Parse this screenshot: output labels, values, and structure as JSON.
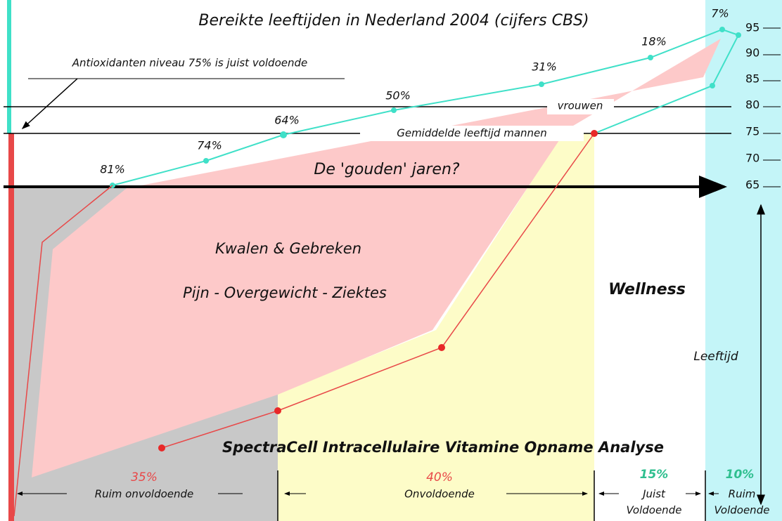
{
  "title": "Bereikte leeftijden in Nederland 2004 (cijfers CBS)",
  "annotation": "Antioxidanten niveau 75% is juist voldoende",
  "lines": {
    "women": "vrouwen",
    "men": "Gemiddelde leeftijd mannen"
  },
  "golden_years": "De 'gouden' jaren?",
  "area_labels": {
    "ailments": "Kwalen & Gebreken",
    "conditions": "Pijn - Overgewicht - Ziektes",
    "wellness": "Wellness",
    "age": "Leeftijd",
    "analysis": "SpectraCell Intracellulaire Vitamine Opname Analyse"
  },
  "age_axis": [
    95,
    90,
    85,
    80,
    75,
    70,
    65
  ],
  "survival_labels": [
    "81%",
    "74%",
    "64%",
    "50%",
    "31%",
    "18%",
    "7%"
  ],
  "levels": [
    {
      "percent": "35%",
      "label": [
        "Ruim onvoldoende"
      ]
    },
    {
      "percent": "40%",
      "label": [
        "Onvoldoende"
      ]
    },
    {
      "percent": "15%",
      "label": [
        "Juist",
        "Voldoende"
      ]
    },
    {
      "percent": "10%",
      "label": [
        "Ruim",
        "Voldoende"
      ]
    }
  ]
}
